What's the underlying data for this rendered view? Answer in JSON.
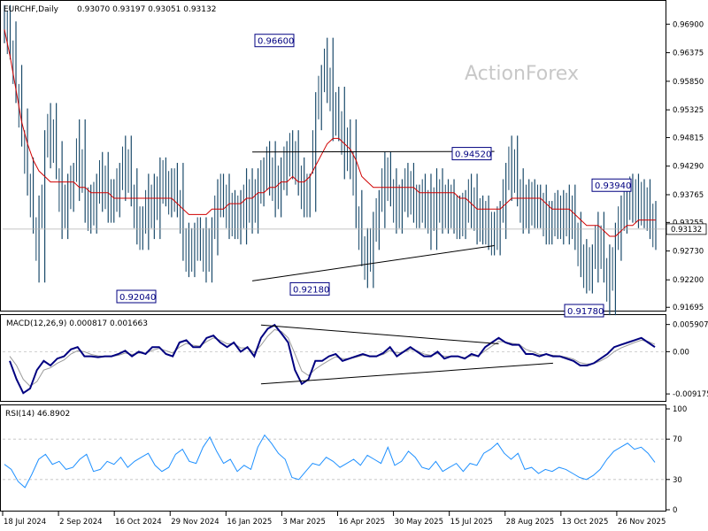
{
  "chart_data": [
    {
      "type": "bar",
      "subtype": "ohlc",
      "panel": "price",
      "header": {
        "symbol": "EURCHF,Daily",
        "ohlc": "0.93070 0.93197 0.93051 0.93132"
      },
      "watermark": "ActionForex",
      "yticks": [
        "0.96900",
        "0.96375",
        "0.95850",
        "0.95325",
        "0.94815",
        "0.94290",
        "0.93765",
        "0.93255",
        "0.92730",
        "0.92200",
        "0.91695"
      ],
      "ylim": [
        0.9165,
        0.971
      ],
      "current_price": "0.93132",
      "annotations": [
        {
          "label": "0.96600",
          "value": 0.966
        },
        {
          "label": "0.94520",
          "value": 0.9452
        },
        {
          "label": "0.93940",
          "value": 0.9394
        },
        {
          "label": "0.92040",
          "value": 0.9204
        },
        {
          "label": "0.92180",
          "value": 0.9218
        },
        {
          "label": "0.91780",
          "value": 0.9178
        }
      ],
      "xticks": [
        "18 Jul 2024",
        "2 Sep 2024",
        "16 Oct 2024",
        "29 Nov 2024",
        "16 Jan 2025",
        "3 Mar 2025",
        "16 Apr 2025",
        "30 May 2025",
        "15 Jul 2025",
        "28 Aug 2025",
        "13 Oct 2025",
        "26 Nov 2025"
      ],
      "series": [
        {
          "role": "close",
          "values": [
            0.969,
            0.966,
            0.958,
            0.95,
            0.941,
            0.934,
            0.925,
            0.946,
            0.951,
            0.944,
            0.933,
            0.938,
            0.94,
            0.948,
            0.936,
            0.934,
            0.938,
            0.942,
            0.936,
            0.937,
            0.94,
            0.945,
            0.939,
            0.932,
            0.931,
            0.938,
            0.933,
            0.941,
            0.939,
            0.937,
            0.94,
            0.929,
            0.926,
            0.929,
            0.93,
            0.925,
            0.93,
            0.937,
            0.938,
            0.933,
            0.935,
            0.932,
            0.939,
            0.934,
            0.939,
            0.941,
            0.944,
            0.937,
            0.941,
            0.944,
            0.946,
            0.941,
            0.937,
            0.938,
            0.953,
            0.958,
            0.963,
            0.951,
            0.954,
            0.944,
            0.948,
            0.935,
            0.928,
            0.924,
            0.931,
            0.935,
            0.942,
            0.939,
            0.934,
            0.937,
            0.94,
            0.936,
            0.935,
            0.938,
            0.931,
            0.939,
            0.934,
            0.937,
            0.934,
            0.933,
            0.935,
            0.938,
            0.932,
            0.934,
            0.931,
            0.93,
            0.933,
            0.94,
            0.945,
            0.939,
            0.934,
            0.937,
            0.935,
            0.936,
            0.932,
            0.933,
            0.935,
            0.932,
            0.936,
            0.931,
            0.926,
            0.923,
            0.925,
            0.931,
            0.925,
            0.919,
            0.929,
            0.934,
            0.936,
            0.938,
            0.935,
            0.937,
            0.933,
            0.931
          ]
        },
        {
          "role": "moving-average",
          "values": [
            0.968,
            0.963,
            0.957,
            0.951,
            0.947,
            0.944,
            0.942,
            0.941,
            0.94,
            0.94,
            0.94,
            0.94,
            0.94,
            0.939,
            0.939,
            0.938,
            0.938,
            0.938,
            0.938,
            0.937,
            0.937,
            0.937,
            0.937,
            0.937,
            0.937,
            0.937,
            0.937,
            0.937,
            0.937,
            0.937,
            0.936,
            0.935,
            0.934,
            0.934,
            0.934,
            0.934,
            0.935,
            0.935,
            0.935,
            0.936,
            0.936,
            0.936,
            0.937,
            0.937,
            0.938,
            0.938,
            0.939,
            0.939,
            0.94,
            0.94,
            0.941,
            0.94,
            0.94,
            0.941,
            0.943,
            0.945,
            0.947,
            0.948,
            0.948,
            0.947,
            0.946,
            0.944,
            0.941,
            0.94,
            0.939,
            0.939,
            0.939,
            0.939,
            0.939,
            0.939,
            0.939,
            0.939,
            0.938,
            0.938,
            0.938,
            0.938,
            0.938,
            0.938,
            0.938,
            0.937,
            0.937,
            0.936,
            0.935,
            0.935,
            0.935,
            0.935,
            0.935,
            0.936,
            0.937,
            0.937,
            0.937,
            0.937,
            0.937,
            0.937,
            0.936,
            0.935,
            0.935,
            0.935,
            0.935,
            0.934,
            0.933,
            0.932,
            0.932,
            0.932,
            0.931,
            0.93,
            0.93,
            0.931,
            0.932,
            0.932,
            0.933,
            0.933,
            0.933,
            0.933
          ]
        }
      ],
      "trendlines": [
        {
          "from_index": 43,
          "from_value": 0.9455,
          "to_index": 85,
          "to_value": 0.9456
        },
        {
          "from_index": 43,
          "from_value": 0.9218,
          "to_index": 85,
          "to_value": 0.9283
        }
      ]
    },
    {
      "type": "line",
      "panel": "macd",
      "header": "MACD(12,26,9) 0.000817 0.001663",
      "yticks": [
        "0.005907",
        "0.00",
        "-0.009175"
      ],
      "ylim": [
        -0.0105,
        0.0068
      ],
      "series": [
        {
          "role": "macd",
          "values": [
            -0.002,
            -0.006,
            -0.009,
            -0.008,
            -0.004,
            -0.002,
            -0.003,
            -0.0015,
            -0.001,
            0.0005,
            0.001,
            -0.001,
            -0.001,
            -0.0012,
            -0.001,
            -0.001,
            -0.0005,
            0.0002,
            -0.001,
            0.0,
            -0.0005,
            0.001,
            0.001,
            -0.0005,
            -0.001,
            0.002,
            0.0025,
            0.001,
            0.001,
            0.003,
            0.0035,
            0.002,
            0.001,
            0.002,
            0.0,
            0.001,
            -0.001,
            0.003,
            0.005,
            0.0058,
            0.004,
            0.002,
            -0.004,
            -0.007,
            -0.006,
            -0.002,
            -0.002,
            -0.001,
            -0.0005,
            -0.002,
            -0.0015,
            -0.001,
            -0.0005,
            -0.001,
            -0.001,
            -0.0003,
            0.001,
            -0.001,
            0.0,
            0.001,
            0.0,
            -0.001,
            -0.001,
            0.0,
            -0.0015,
            -0.001,
            -0.001,
            -0.0015,
            -0.0005,
            -0.001,
            0.001,
            0.002,
            0.003,
            0.002,
            0.0015,
            0.0015,
            -0.0005,
            -0.0005,
            -0.001,
            -0.0005,
            -0.001,
            -0.001,
            -0.0015,
            -0.002,
            -0.003,
            -0.003,
            -0.0025,
            -0.0015,
            -0.0005,
            0.001,
            0.0015,
            0.002,
            0.0025,
            0.003,
            0.002,
            0.001
          ]
        },
        {
          "role": "signal",
          "values": [
            -0.001,
            -0.003,
            -0.006,
            -0.0075,
            -0.0065,
            -0.004,
            -0.0035,
            -0.0025,
            -0.0018,
            -0.0005,
            0.0002,
            0.0,
            -0.0006,
            -0.0009,
            -0.001,
            -0.001,
            -0.0008,
            -0.0003,
            -0.0006,
            -0.0003,
            -0.0004,
            0.0003,
            0.0007,
            0.0002,
            -0.0003,
            0.001,
            0.0018,
            0.0014,
            0.0012,
            0.0022,
            0.003,
            0.0025,
            0.0017,
            0.0018,
            0.0008,
            0.0009,
            -0.0002,
            0.0014,
            0.0034,
            0.0048,
            0.0044,
            0.003,
            -0.0005,
            -0.0042,
            -0.0052,
            -0.0038,
            -0.0028,
            -0.0019,
            -0.0011,
            -0.0015,
            -0.0015,
            -0.0012,
            -0.0008,
            -0.0009,
            -0.0009,
            -0.0006,
            0.0003,
            -0.0003,
            -0.0001,
            0.0005,
            0.0002,
            -0.0005,
            -0.0008,
            -0.0004,
            -0.001,
            -0.001,
            -0.001,
            -0.0013,
            -0.0009,
            -0.0009,
            0.0002,
            0.0012,
            0.0022,
            0.0021,
            0.0018,
            0.0016,
            0.0005,
            0.0,
            -0.0006,
            -0.0006,
            -0.0008,
            -0.0009,
            -0.0012,
            -0.0016,
            -0.0024,
            -0.0027,
            -0.0026,
            -0.002,
            -0.0012,
            0.0,
            0.0008,
            0.0014,
            0.002,
            0.0025,
            0.0022,
            0.0016
          ]
        }
      ],
      "trendlines": [
        {
          "from_index": 37,
          "from_value": 0.0058,
          "to_index": 72,
          "to_value": 0.0017
        },
        {
          "from_index": 37,
          "from_value": -0.007,
          "to_index": 80,
          "to_value": -0.0025
        }
      ]
    },
    {
      "type": "line",
      "panel": "rsi",
      "header": "RSI(14) 46.8902",
      "yticks": [
        "100",
        "70",
        "30",
        "0"
      ],
      "ylim": [
        0,
        100
      ],
      "levels": [
        70,
        30
      ],
      "series": [
        {
          "role": "rsi",
          "values": [
            45,
            40,
            28,
            22,
            35,
            50,
            55,
            45,
            48,
            40,
            42,
            50,
            55,
            38,
            40,
            48,
            45,
            52,
            42,
            48,
            52,
            56,
            44,
            38,
            42,
            55,
            60,
            48,
            46,
            62,
            72,
            58,
            46,
            50,
            38,
            44,
            40,
            62,
            74,
            66,
            56,
            50,
            32,
            30,
            38,
            46,
            44,
            52,
            48,
            42,
            46,
            50,
            44,
            54,
            50,
            46,
            62,
            44,
            48,
            58,
            52,
            42,
            40,
            48,
            38,
            42,
            46,
            38,
            46,
            44,
            56,
            60,
            66,
            56,
            50,
            56,
            40,
            42,
            36,
            40,
            38,
            42,
            40,
            36,
            32,
            30,
            34,
            40,
            50,
            58,
            62,
            66,
            60,
            62,
            56,
            47
          ]
        }
      ]
    }
  ]
}
